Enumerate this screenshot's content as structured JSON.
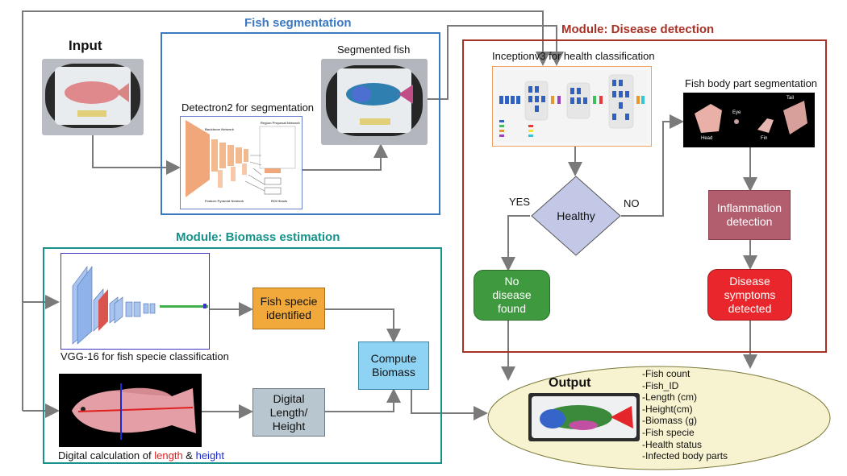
{
  "input": {
    "title": "Input"
  },
  "segmentation": {
    "title": "Fish segmentation",
    "detectron_caption": "Detectron2 for segmentation",
    "segmented_caption": "Segmented fish",
    "backbone_label": "Backbone Network",
    "rpn_label": "Region Proposal Network",
    "fpn_label": "Feature Pyramid Network",
    "roi_label": "ROI Heads"
  },
  "disease": {
    "title": "Module: Disease detection",
    "inception_caption": "Inceptionv3 for health classification",
    "bodypart_caption": "Fish body part segmentation",
    "part_labels": [
      "Eye",
      "Tail",
      "Head",
      "Fin"
    ],
    "decision": "Healthy",
    "yes": "YES",
    "no": "NO",
    "no_disease": "No disease found",
    "inflammation": "Inflammation detection",
    "symptoms": "Disease symptoms detected"
  },
  "biomass": {
    "title": "Module: Biomass estimation",
    "vgg_caption": "VGG-16 for fish specie classification",
    "specie": "Fish specie identified",
    "compute": "Compute Biomass",
    "digital": "Digital Length/ Height",
    "calc_prefix": "Digital calculation of",
    "calc_length": "length",
    "calc_and": "&",
    "calc_height": "height"
  },
  "output": {
    "title": "Output",
    "items": [
      "-Fish count",
      "-Fish_ID",
      "-Length (cm)",
      "-Height(cm)",
      "-Biomass (g)",
      "-Fish specie",
      "-Health status",
      "-Infected body parts"
    ]
  },
  "colors": {
    "segmentation": "#3a78c0",
    "disease": "#a93226",
    "biomass": "#16928a",
    "specie": "#f2a93b",
    "compute": "#8fd3f4",
    "digital": "#b8c6cf",
    "healthy": "#c3c8e6",
    "no_disease": "#3f9a3f",
    "inflammation": "#b35e6e",
    "symptoms": "#e8262b",
    "output": "#f7f2cf",
    "length_line": "#e02020",
    "height_line": "#1a2ad4"
  }
}
